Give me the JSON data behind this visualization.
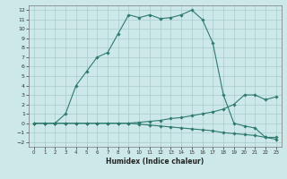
{
  "xlabel": "Humidex (Indice chaleur)",
  "background_color": "#cce8e8",
  "line_color": "#2d7a6e",
  "grid_color": "#aacccc",
  "xlim": [
    -0.5,
    23.5
  ],
  "ylim": [
    -2.5,
    12.5
  ],
  "xticks": [
    0,
    1,
    2,
    3,
    4,
    5,
    6,
    7,
    8,
    9,
    10,
    11,
    12,
    13,
    14,
    15,
    16,
    17,
    18,
    19,
    20,
    21,
    22,
    23
  ],
  "yticks": [
    -2,
    -1,
    0,
    1,
    2,
    3,
    4,
    5,
    6,
    7,
    8,
    9,
    10,
    11,
    12
  ],
  "line1_x": [
    0,
    1,
    2,
    3,
    4,
    5,
    6,
    7,
    8,
    9,
    10,
    11,
    12,
    13,
    14,
    15,
    16,
    17,
    18,
    19,
    20,
    21,
    22,
    23
  ],
  "line1_y": [
    0,
    0,
    0,
    1,
    4,
    5.5,
    7,
    7.5,
    9.5,
    11.5,
    11.2,
    11.5,
    11.1,
    11.2,
    11.5,
    12,
    11.0,
    8.5,
    3.0,
    0.0,
    -0.3,
    -0.5,
    -1.5,
    -1.5
  ],
  "line2_x": [
    0,
    1,
    2,
    3,
    4,
    5,
    6,
    7,
    8,
    9,
    10,
    11,
    12,
    13,
    14,
    15,
    16,
    17,
    18,
    19,
    20,
    21,
    22,
    23
  ],
  "line2_y": [
    0,
    0,
    0,
    0,
    0,
    0,
    0,
    0,
    0,
    0,
    0.1,
    0.2,
    0.3,
    0.5,
    0.6,
    0.8,
    1.0,
    1.2,
    1.5,
    2.0,
    3.0,
    3.0,
    2.5,
    2.8
  ],
  "line3_x": [
    0,
    1,
    2,
    3,
    4,
    5,
    6,
    7,
    8,
    9,
    10,
    11,
    12,
    13,
    14,
    15,
    16,
    17,
    18,
    19,
    20,
    21,
    22,
    23
  ],
  "line3_y": [
    0,
    0,
    0,
    0,
    0,
    0,
    0,
    0,
    0,
    0,
    -0.1,
    -0.2,
    -0.3,
    -0.4,
    -0.5,
    -0.6,
    -0.7,
    -0.8,
    -1.0,
    -1.1,
    -1.2,
    -1.3,
    -1.5,
    -1.7
  ]
}
